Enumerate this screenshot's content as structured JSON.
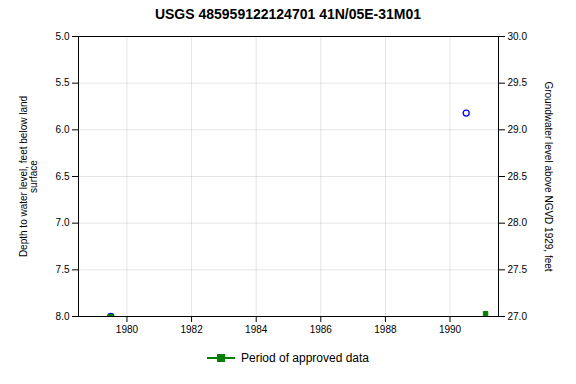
{
  "chart_data": {
    "type": "scatter",
    "title": "USGS 485959122124701 41N/05E-31M01",
    "ylabel": "Depth to water level, feet below land\nsurface",
    "y2label": "Groundwater level above NGVD 1929, feet",
    "xlim": [
      1978.5,
      1991.5
    ],
    "xticks": [
      1980,
      1982,
      1984,
      1986,
      1988,
      1990
    ],
    "ylim": [
      5.0,
      8.0
    ],
    "yticks": [
      {
        "value": 5.0,
        "label": "5.0"
      },
      5.5,
      {
        "value": 6.0,
        "label": "6.0"
      },
      6.5,
      {
        "value": 7.0,
        "label": "7.0"
      },
      7.5,
      {
        "value": 8.0,
        "label": "8.0"
      }
    ],
    "y2lim": [
      27.0,
      30.0
    ],
    "y2ticks": [
      {
        "value": 27.0,
        "label": "27.0"
      },
      27.5,
      {
        "value": 28.0,
        "label": "28.0"
      },
      28.5,
      {
        "value": 29.0,
        "label": "29.0"
      },
      29.5,
      {
        "value": 30.0,
        "label": "30.0"
      }
    ],
    "grid": true,
    "legend": "bottom",
    "series": [
      {
        "color": "#0000ff",
        "marker": "circle",
        "x": [
          1979.5,
          1990.5
        ],
        "values": [
          8.0,
          5.82
        ]
      },
      {
        "name": "Period of approved data",
        "color": "#008000",
        "marker": "square",
        "x": [
          1979.5,
          1991.1
        ],
        "values": [
          8.0,
          7.97
        ]
      }
    ]
  }
}
